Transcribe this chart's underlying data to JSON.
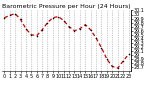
{
  "title": "Barometric Pressure per Hour (24 Hours)",
  "hours": [
    0,
    1,
    2,
    3,
    4,
    5,
    6,
    7,
    8,
    9,
    10,
    11,
    12,
    13,
    14,
    15,
    16,
    17,
    18,
    19,
    20,
    21,
    22,
    23
  ],
  "pressure": [
    29.92,
    29.98,
    30.02,
    29.88,
    29.65,
    29.5,
    29.48,
    29.62,
    29.8,
    29.92,
    29.95,
    29.85,
    29.7,
    29.6,
    29.65,
    29.75,
    29.62,
    29.42,
    29.18,
    28.9,
    28.72,
    28.68,
    28.85,
    29.02
  ],
  "line_color": "#cc0000",
  "marker_color": "#000000",
  "bg_color": "#ffffff",
  "grid_color": "#999999",
  "ymin": 28.6,
  "ymax": 30.1,
  "yticks": [
    28.7,
    28.8,
    28.9,
    29.0,
    29.1,
    29.2,
    29.3,
    29.4,
    29.5,
    29.6,
    29.7,
    29.8,
    29.9,
    30.0,
    30.1
  ],
  "ytick_labels": [
    "28.7",
    "28.8",
    "28.9",
    "29",
    "29.1",
    "29.2",
    "29.3",
    "29.4",
    "29.5",
    "29.6",
    "29.7",
    "29.8",
    "29.9",
    "30",
    "30.1"
  ],
  "title_fontsize": 4.5,
  "tick_fontsize": 3.5
}
